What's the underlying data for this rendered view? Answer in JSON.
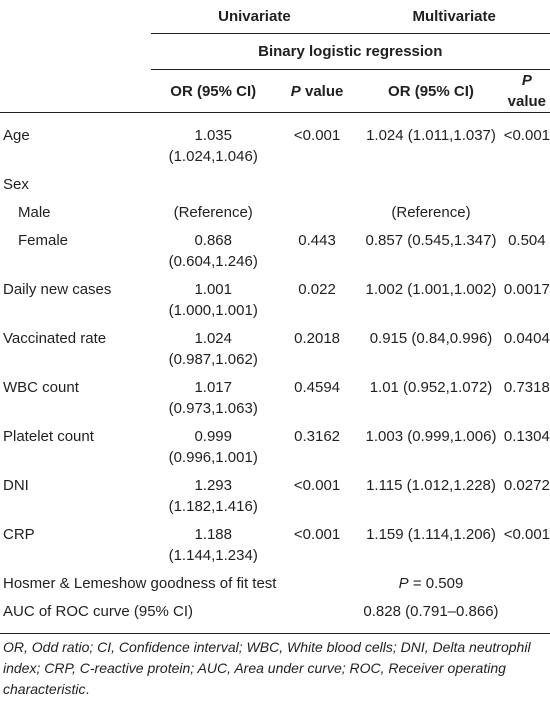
{
  "header": {
    "univariate": "Univariate",
    "multivariate": "Multivariate",
    "method": "Binary logistic regression",
    "or_ci": "OR (95% CI)",
    "p_italic": "P",
    "p_rest": " value"
  },
  "rows": [
    {
      "label": "Age",
      "u_or": "1.035 (1.024,1.046)",
      "u_p": "<0.001",
      "m_or": "1.024 (1.011,1.037)",
      "m_p": "<0.001"
    },
    {
      "label": "Sex"
    },
    {
      "label": "Male",
      "u_or": "(Reference)",
      "m_or": "(Reference)"
    },
    {
      "label": "Female",
      "u_or": "0.868 (0.604,1.246)",
      "u_p": "0.443",
      "m_or": "0.857 (0.545,1.347)",
      "m_p": "0.504"
    },
    {
      "label": "Daily new cases",
      "u_or": "1.001 (1.000,1.001)",
      "u_p": "0.022",
      "m_or": "1.002 (1.001,1.002)",
      "m_p": "0.0017"
    },
    {
      "label": "Vaccinated rate",
      "u_or": "1.024 (0.987,1.062)",
      "u_p": "0.2018",
      "m_or": "0.915 (0.84,0.996)",
      "m_p": "0.0404"
    },
    {
      "label": "WBC count",
      "u_or": "1.017 (0.973,1.063)",
      "u_p": "0.4594",
      "m_or": "1.01 (0.952,1.072)",
      "m_p": "0.7318"
    },
    {
      "label": "Platelet count",
      "u_or": "0.999 (0.996,1.001)",
      "u_p": "0.3162",
      "m_or": "1.003 (0.999,1.006)",
      "m_p": "0.1304"
    },
    {
      "label": "DNI",
      "u_or": "1.293 (1.182,1.416)",
      "u_p": "<0.001",
      "m_or": "1.115 (1.012,1.228)",
      "m_p": "0.0272"
    },
    {
      "label": "CRP",
      "u_or": "1.188 (1.144,1.234)",
      "u_p": "<0.001",
      "m_or": "1.159 (1.114,1.206)",
      "m_p": "<0.001"
    }
  ],
  "hosmer": {
    "label": "Hosmer & Lemeshow goodness of fit test",
    "p_italic": "P",
    "value": " = 0.509"
  },
  "auc": {
    "label": "AUC of ROC curve (95% CI)",
    "value": "0.828 (0.791–0.866)"
  },
  "footnote": {
    "part1": "OR, Odd ratio; CI, Confidence interval; WBC, White blood cells; DNI, Delta neutrophil index; CRP, C-reactive protein; AUC, Area under curve; ROC, Receiver operating characteristic",
    "period": "."
  }
}
